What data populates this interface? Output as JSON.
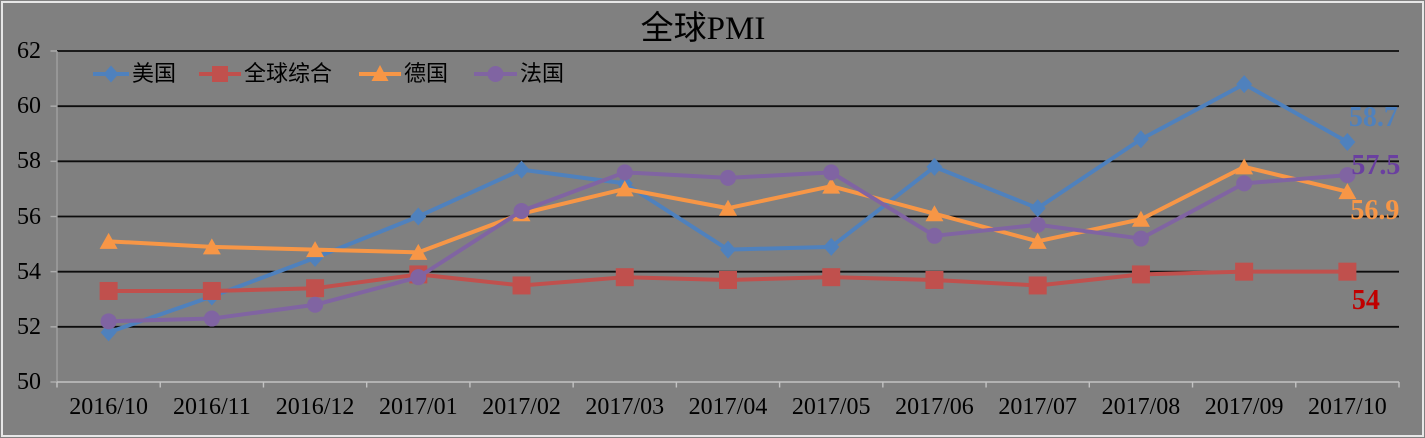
{
  "chart_data": {
    "type": "line",
    "title": "全球PMI",
    "categories": [
      "2016/10",
      "2016/11",
      "2016/12",
      "2017/01",
      "2017/02",
      "2017/03",
      "2017/04",
      "2017/05",
      "2017/06",
      "2017/07",
      "2017/08",
      "2017/09",
      "2017/10"
    ],
    "series": [
      {
        "name": "美国",
        "color": "#4F81BD",
        "marker": "diamond",
        "values": [
          51.8,
          53.1,
          54.5,
          56.0,
          57.7,
          57.2,
          54.8,
          54.9,
          57.8,
          56.3,
          58.8,
          60.8,
          58.7
        ],
        "end_label": {
          "text": "58.7",
          "color": "#4F81BD"
        }
      },
      {
        "name": "全球综合",
        "color": "#C0504D",
        "marker": "square",
        "values": [
          53.3,
          53.3,
          53.4,
          53.9,
          53.5,
          53.8,
          53.7,
          53.8,
          53.7,
          53.5,
          53.9,
          54.0,
          54.0
        ],
        "end_label": {
          "text": "54",
          "color": "#C00000"
        }
      },
      {
        "name": "德国",
        "color": "#F79646",
        "marker": "triangle",
        "values": [
          55.1,
          54.9,
          54.8,
          54.7,
          56.1,
          57.0,
          56.3,
          57.1,
          56.1,
          55.1,
          55.9,
          57.8,
          56.9
        ],
        "end_label": {
          "text": "56.9",
          "color": "#F79646"
        }
      },
      {
        "name": "法国",
        "color": "#8064A2",
        "marker": "circle",
        "values": [
          52.2,
          52.3,
          52.8,
          53.8,
          56.2,
          57.6,
          57.4,
          57.6,
          55.3,
          55.7,
          55.2,
          57.2,
          57.5
        ],
        "end_label": {
          "text": "57.5",
          "color": "#6A3FA0"
        }
      }
    ],
    "y_axis": {
      "min": 50,
      "max": 62,
      "step": 2,
      "ticks": [
        50,
        52,
        54,
        56,
        58,
        60,
        62
      ]
    },
    "x_axis_label_format": "yyyy/mm",
    "legend_position": "top",
    "grid": true,
    "colors": {
      "background": "#808080",
      "frame_border": "#E7E7E7",
      "gridline": "#0D0D0D",
      "axis_line": "#C3C3C3",
      "text": "#000000"
    }
  }
}
